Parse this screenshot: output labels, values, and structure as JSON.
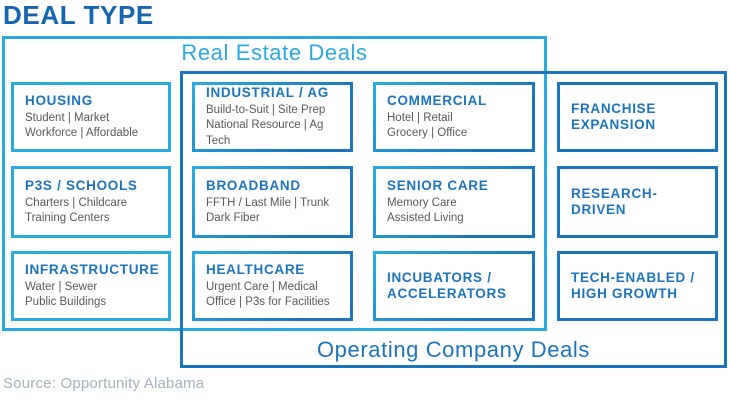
{
  "title": "DEAL TYPE",
  "source": "Source: Opportunity Alabama",
  "groups": {
    "real_estate": {
      "label": "Real Estate Deals"
    },
    "operating": {
      "label": "Operating Company Deals"
    }
  },
  "colors": {
    "cyan": "#29abe2",
    "blue": "#1c75bc",
    "heading_blue": "#1565b0",
    "body_gray": "#58595b",
    "source_gray": "#a8b1bf"
  },
  "cards": [
    {
      "title": "HOUSING",
      "body": "Student | Market\nWorkforce | Affordable",
      "type": "re"
    },
    {
      "title": "INDUSTRIAL / AG",
      "body": "Build-to-Suit | Site Prep\nNational Resource | Ag Tech",
      "type": "both"
    },
    {
      "title": "COMMERCIAL",
      "body": "Hotel | Retail\nGrocery | Office",
      "type": "both"
    },
    {
      "title": "FRANCHISE\nEXPANSION",
      "body": "",
      "type": "oc"
    },
    {
      "title": "P3S / SCHOOLS",
      "body": "Charters | Childcare\nTraining Centers",
      "type": "re"
    },
    {
      "title": "BROADBAND",
      "body": "FFTH / Last Mile | Trunk\nDark Fiber",
      "type": "both"
    },
    {
      "title": "SENIOR CARE",
      "body": "Memory Care\nAssisted Living",
      "type": "both"
    },
    {
      "title": "RESEARCH-\nDRIVEN",
      "body": "",
      "type": "oc"
    },
    {
      "title": "INFRASTRUCTURE",
      "body": "Water | Sewer\nPublic Buildings",
      "type": "re"
    },
    {
      "title": "HEALTHCARE",
      "body": "Urgent Care | Medical\nOffice | P3s for Facilities",
      "type": "both"
    },
    {
      "title": "INCUBATORS /\nACCELERATORS",
      "body": "",
      "type": "both"
    },
    {
      "title": "TECH-ENABLED /\nHIGH GROWTH",
      "body": "",
      "type": "oc"
    }
  ]
}
